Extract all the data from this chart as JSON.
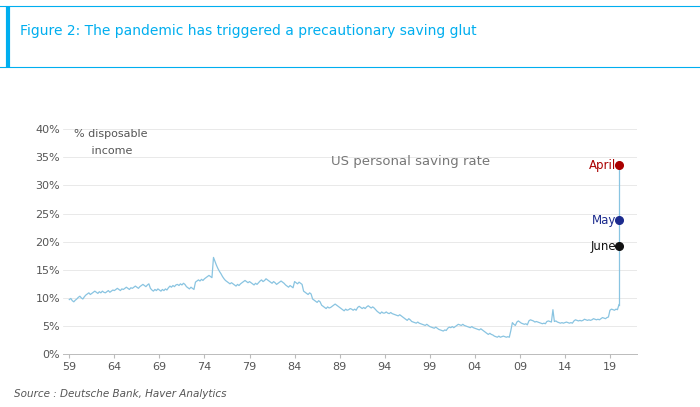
{
  "title": "Figure 2: The pandemic has triggered a precautionary saving glut",
  "subtitle": "US personal saving rate",
  "ylabel_line1": "% disposable",
  "ylabel_line2": "     income",
  "source": "Source : Deutsche Bank, Haver Analytics",
  "title_color": "#00AEEF",
  "line_color": "#89C4E1",
  "border_color": "#00AEEF",
  "background_color": "#FFFFFF",
  "text_color": "#555555",
  "ylim": [
    0,
    0.42
  ],
  "yticks": [
    0.0,
    0.05,
    0.1,
    0.15,
    0.2,
    0.25,
    0.3,
    0.35,
    0.4
  ],
  "ytick_labels": [
    "0%",
    "5%",
    "10%",
    "15%",
    "20%",
    "25%",
    "30%",
    "35%",
    "40%"
  ],
  "xticks": [
    1959,
    1964,
    1969,
    1974,
    1979,
    1984,
    1989,
    1994,
    1999,
    2004,
    2009,
    2014,
    2019
  ],
  "xtick_labels": [
    "59",
    "64",
    "69",
    "74",
    "79",
    "84",
    "89",
    "94",
    "99",
    "04",
    "09",
    "14",
    "19"
  ],
  "annotations": [
    {
      "label": "April",
      "value": 0.336,
      "color": "#AA0000",
      "marker_color": "#AA0000"
    },
    {
      "label": "May",
      "value": 0.238,
      "color": "#1C2B8E",
      "marker_color": "#1C2B8E"
    },
    {
      "label": "June",
      "value": 0.192,
      "color": "#111111",
      "marker_color": "#111111"
    }
  ],
  "xlim_left": 1958.3,
  "xlim_right": 2022.0,
  "spike_year": 2020.25,
  "pre_spike_year": 2020.0,
  "pre_spike_val": 0.088,
  "saving_rate_data": [
    [
      1959.0,
      0.097
    ],
    [
      1959.17,
      0.099
    ],
    [
      1959.33,
      0.095
    ],
    [
      1959.5,
      0.093
    ],
    [
      1959.67,
      0.096
    ],
    [
      1959.83,
      0.098
    ],
    [
      1960.0,
      0.101
    ],
    [
      1960.17,
      0.103
    ],
    [
      1960.33,
      0.1
    ],
    [
      1960.5,
      0.098
    ],
    [
      1960.67,
      0.102
    ],
    [
      1960.83,
      0.105
    ],
    [
      1961.0,
      0.107
    ],
    [
      1961.17,
      0.109
    ],
    [
      1961.33,
      0.106
    ],
    [
      1961.5,
      0.108
    ],
    [
      1961.67,
      0.11
    ],
    [
      1961.83,
      0.112
    ],
    [
      1962.0,
      0.11
    ],
    [
      1962.17,
      0.108
    ],
    [
      1962.33,
      0.111
    ],
    [
      1962.5,
      0.109
    ],
    [
      1962.67,
      0.112
    ],
    [
      1962.83,
      0.11
    ],
    [
      1963.0,
      0.109
    ],
    [
      1963.17,
      0.111
    ],
    [
      1963.33,
      0.113
    ],
    [
      1963.5,
      0.11
    ],
    [
      1963.67,
      0.112
    ],
    [
      1963.83,
      0.114
    ],
    [
      1964.0,
      0.113
    ],
    [
      1964.17,
      0.115
    ],
    [
      1964.33,
      0.117
    ],
    [
      1964.5,
      0.115
    ],
    [
      1964.67,
      0.113
    ],
    [
      1964.83,
      0.116
    ],
    [
      1965.0,
      0.115
    ],
    [
      1965.17,
      0.117
    ],
    [
      1965.33,
      0.119
    ],
    [
      1965.5,
      0.117
    ],
    [
      1965.67,
      0.115
    ],
    [
      1965.83,
      0.118
    ],
    [
      1966.0,
      0.117
    ],
    [
      1966.17,
      0.119
    ],
    [
      1966.33,
      0.121
    ],
    [
      1966.5,
      0.119
    ],
    [
      1966.67,
      0.117
    ],
    [
      1966.83,
      0.12
    ],
    [
      1967.0,
      0.122
    ],
    [
      1967.17,
      0.124
    ],
    [
      1967.33,
      0.122
    ],
    [
      1967.5,
      0.12
    ],
    [
      1967.67,
      0.123
    ],
    [
      1967.83,
      0.125
    ],
    [
      1968.0,
      0.117
    ],
    [
      1968.17,
      0.114
    ],
    [
      1968.33,
      0.112
    ],
    [
      1968.5,
      0.115
    ],
    [
      1968.67,
      0.113
    ],
    [
      1968.83,
      0.116
    ],
    [
      1969.0,
      0.114
    ],
    [
      1969.17,
      0.112
    ],
    [
      1969.33,
      0.115
    ],
    [
      1969.5,
      0.113
    ],
    [
      1969.67,
      0.116
    ],
    [
      1969.83,
      0.114
    ],
    [
      1970.0,
      0.118
    ],
    [
      1970.17,
      0.121
    ],
    [
      1970.33,
      0.119
    ],
    [
      1970.5,
      0.122
    ],
    [
      1970.67,
      0.12
    ],
    [
      1970.83,
      0.123
    ],
    [
      1971.0,
      0.124
    ],
    [
      1971.17,
      0.122
    ],
    [
      1971.33,
      0.125
    ],
    [
      1971.5,
      0.123
    ],
    [
      1971.67,
      0.126
    ],
    [
      1971.83,
      0.124
    ],
    [
      1972.0,
      0.12
    ],
    [
      1972.17,
      0.118
    ],
    [
      1972.33,
      0.116
    ],
    [
      1972.5,
      0.119
    ],
    [
      1972.67,
      0.117
    ],
    [
      1972.83,
      0.115
    ],
    [
      1973.0,
      0.128
    ],
    [
      1973.17,
      0.13
    ],
    [
      1973.33,
      0.132
    ],
    [
      1973.5,
      0.13
    ],
    [
      1973.67,
      0.133
    ],
    [
      1973.83,
      0.131
    ],
    [
      1974.0,
      0.134
    ],
    [
      1974.17,
      0.136
    ],
    [
      1974.33,
      0.138
    ],
    [
      1974.5,
      0.14
    ],
    [
      1974.67,
      0.138
    ],
    [
      1974.83,
      0.136
    ],
    [
      1975.0,
      0.172
    ],
    [
      1975.17,
      0.165
    ],
    [
      1975.33,
      0.158
    ],
    [
      1975.5,
      0.152
    ],
    [
      1975.67,
      0.147
    ],
    [
      1975.83,
      0.143
    ],
    [
      1976.0,
      0.138
    ],
    [
      1976.17,
      0.134
    ],
    [
      1976.33,
      0.131
    ],
    [
      1976.5,
      0.129
    ],
    [
      1976.67,
      0.127
    ],
    [
      1976.83,
      0.125
    ],
    [
      1977.0,
      0.127
    ],
    [
      1977.17,
      0.125
    ],
    [
      1977.33,
      0.123
    ],
    [
      1977.5,
      0.121
    ],
    [
      1977.67,
      0.124
    ],
    [
      1977.83,
      0.122
    ],
    [
      1978.0,
      0.125
    ],
    [
      1978.17,
      0.127
    ],
    [
      1978.33,
      0.129
    ],
    [
      1978.5,
      0.131
    ],
    [
      1978.67,
      0.129
    ],
    [
      1978.83,
      0.127
    ],
    [
      1979.0,
      0.129
    ],
    [
      1979.17,
      0.127
    ],
    [
      1979.33,
      0.125
    ],
    [
      1979.5,
      0.123
    ],
    [
      1979.67,
      0.126
    ],
    [
      1979.83,
      0.124
    ],
    [
      1980.0,
      0.127
    ],
    [
      1980.17,
      0.13
    ],
    [
      1980.33,
      0.132
    ],
    [
      1980.5,
      0.129
    ],
    [
      1980.67,
      0.131
    ],
    [
      1980.83,
      0.134
    ],
    [
      1981.0,
      0.132
    ],
    [
      1981.17,
      0.13
    ],
    [
      1981.33,
      0.128
    ],
    [
      1981.5,
      0.126
    ],
    [
      1981.67,
      0.129
    ],
    [
      1981.83,
      0.127
    ],
    [
      1982.0,
      0.124
    ],
    [
      1982.17,
      0.126
    ],
    [
      1982.33,
      0.128
    ],
    [
      1982.5,
      0.13
    ],
    [
      1982.67,
      0.128
    ],
    [
      1982.83,
      0.126
    ],
    [
      1983.0,
      0.123
    ],
    [
      1983.17,
      0.121
    ],
    [
      1983.33,
      0.119
    ],
    [
      1983.5,
      0.122
    ],
    [
      1983.67,
      0.12
    ],
    [
      1983.83,
      0.118
    ],
    [
      1984.0,
      0.129
    ],
    [
      1984.17,
      0.127
    ],
    [
      1984.33,
      0.125
    ],
    [
      1984.5,
      0.128
    ],
    [
      1984.67,
      0.126
    ],
    [
      1984.83,
      0.124
    ],
    [
      1985.0,
      0.112
    ],
    [
      1985.17,
      0.11
    ],
    [
      1985.33,
      0.108
    ],
    [
      1985.5,
      0.106
    ],
    [
      1985.67,
      0.109
    ],
    [
      1985.83,
      0.107
    ],
    [
      1986.0,
      0.098
    ],
    [
      1986.17,
      0.096
    ],
    [
      1986.33,
      0.094
    ],
    [
      1986.5,
      0.092
    ],
    [
      1986.67,
      0.095
    ],
    [
      1986.83,
      0.093
    ],
    [
      1987.0,
      0.087
    ],
    [
      1987.17,
      0.085
    ],
    [
      1987.33,
      0.083
    ],
    [
      1987.5,
      0.081
    ],
    [
      1987.67,
      0.084
    ],
    [
      1987.83,
      0.082
    ],
    [
      1988.0,
      0.083
    ],
    [
      1988.17,
      0.085
    ],
    [
      1988.33,
      0.087
    ],
    [
      1988.5,
      0.089
    ],
    [
      1988.67,
      0.087
    ],
    [
      1988.83,
      0.085
    ],
    [
      1989.0,
      0.083
    ],
    [
      1989.17,
      0.081
    ],
    [
      1989.33,
      0.079
    ],
    [
      1989.5,
      0.077
    ],
    [
      1989.67,
      0.08
    ],
    [
      1989.83,
      0.078
    ],
    [
      1990.0,
      0.079
    ],
    [
      1990.17,
      0.081
    ],
    [
      1990.33,
      0.08
    ],
    [
      1990.5,
      0.078
    ],
    [
      1990.67,
      0.08
    ],
    [
      1990.83,
      0.078
    ],
    [
      1991.0,
      0.083
    ],
    [
      1991.17,
      0.085
    ],
    [
      1991.33,
      0.083
    ],
    [
      1991.5,
      0.081
    ],
    [
      1991.67,
      0.083
    ],
    [
      1991.83,
      0.081
    ],
    [
      1992.0,
      0.084
    ],
    [
      1992.17,
      0.086
    ],
    [
      1992.33,
      0.084
    ],
    [
      1992.5,
      0.082
    ],
    [
      1992.67,
      0.084
    ],
    [
      1992.83,
      0.082
    ],
    [
      1993.0,
      0.079
    ],
    [
      1993.17,
      0.076
    ],
    [
      1993.33,
      0.074
    ],
    [
      1993.5,
      0.072
    ],
    [
      1993.67,
      0.075
    ],
    [
      1993.83,
      0.073
    ],
    [
      1994.0,
      0.073
    ],
    [
      1994.17,
      0.075
    ],
    [
      1994.33,
      0.073
    ],
    [
      1994.5,
      0.072
    ],
    [
      1994.67,
      0.074
    ],
    [
      1994.83,
      0.072
    ],
    [
      1995.0,
      0.071
    ],
    [
      1995.17,
      0.07
    ],
    [
      1995.33,
      0.069
    ],
    [
      1995.5,
      0.068
    ],
    [
      1995.67,
      0.07
    ],
    [
      1995.83,
      0.068
    ],
    [
      1996.0,
      0.066
    ],
    [
      1996.17,
      0.064
    ],
    [
      1996.33,
      0.062
    ],
    [
      1996.5,
      0.06
    ],
    [
      1996.67,
      0.063
    ],
    [
      1996.83,
      0.061
    ],
    [
      1997.0,
      0.058
    ],
    [
      1997.17,
      0.057
    ],
    [
      1997.33,
      0.056
    ],
    [
      1997.5,
      0.055
    ],
    [
      1997.67,
      0.057
    ],
    [
      1997.83,
      0.055
    ],
    [
      1998.0,
      0.054
    ],
    [
      1998.17,
      0.053
    ],
    [
      1998.33,
      0.052
    ],
    [
      1998.5,
      0.051
    ],
    [
      1998.67,
      0.053
    ],
    [
      1998.83,
      0.051
    ],
    [
      1999.0,
      0.049
    ],
    [
      1999.17,
      0.048
    ],
    [
      1999.33,
      0.047
    ],
    [
      1999.5,
      0.046
    ],
    [
      1999.67,
      0.048
    ],
    [
      1999.83,
      0.046
    ],
    [
      2000.0,
      0.044
    ],
    [
      2000.17,
      0.043
    ],
    [
      2000.33,
      0.042
    ],
    [
      2000.5,
      0.041
    ],
    [
      2000.67,
      0.043
    ],
    [
      2000.83,
      0.042
    ],
    [
      2001.0,
      0.046
    ],
    [
      2001.17,
      0.048
    ],
    [
      2001.33,
      0.047
    ],
    [
      2001.5,
      0.049
    ],
    [
      2001.67,
      0.047
    ],
    [
      2001.83,
      0.049
    ],
    [
      2002.0,
      0.051
    ],
    [
      2002.17,
      0.053
    ],
    [
      2002.33,
      0.052
    ],
    [
      2002.5,
      0.051
    ],
    [
      2002.67,
      0.053
    ],
    [
      2002.83,
      0.051
    ],
    [
      2003.0,
      0.05
    ],
    [
      2003.17,
      0.049
    ],
    [
      2003.33,
      0.048
    ],
    [
      2003.5,
      0.047
    ],
    [
      2003.67,
      0.049
    ],
    [
      2003.83,
      0.047
    ],
    [
      2004.0,
      0.046
    ],
    [
      2004.17,
      0.045
    ],
    [
      2004.33,
      0.044
    ],
    [
      2004.5,
      0.043
    ],
    [
      2004.67,
      0.045
    ],
    [
      2004.83,
      0.043
    ],
    [
      2005.0,
      0.041
    ],
    [
      2005.17,
      0.039
    ],
    [
      2005.33,
      0.037
    ],
    [
      2005.5,
      0.035
    ],
    [
      2005.67,
      0.037
    ],
    [
      2005.83,
      0.035
    ],
    [
      2006.0,
      0.034
    ],
    [
      2006.17,
      0.032
    ],
    [
      2006.33,
      0.031
    ],
    [
      2006.5,
      0.03
    ],
    [
      2006.67,
      0.032
    ],
    [
      2006.83,
      0.03
    ],
    [
      2007.0,
      0.031
    ],
    [
      2007.17,
      0.032
    ],
    [
      2007.33,
      0.031
    ],
    [
      2007.5,
      0.03
    ],
    [
      2007.67,
      0.031
    ],
    [
      2007.83,
      0.03
    ],
    [
      2008.0,
      0.042
    ],
    [
      2008.17,
      0.056
    ],
    [
      2008.33,
      0.053
    ],
    [
      2008.5,
      0.051
    ],
    [
      2008.67,
      0.057
    ],
    [
      2008.83,
      0.059
    ],
    [
      2009.0,
      0.057
    ],
    [
      2009.17,
      0.055
    ],
    [
      2009.33,
      0.054
    ],
    [
      2009.5,
      0.053
    ],
    [
      2009.67,
      0.054
    ],
    [
      2009.83,
      0.052
    ],
    [
      2010.0,
      0.059
    ],
    [
      2010.17,
      0.061
    ],
    [
      2010.33,
      0.06
    ],
    [
      2010.5,
      0.059
    ],
    [
      2010.67,
      0.057
    ],
    [
      2010.83,
      0.058
    ],
    [
      2011.0,
      0.057
    ],
    [
      2011.17,
      0.056
    ],
    [
      2011.33,
      0.055
    ],
    [
      2011.5,
      0.054
    ],
    [
      2011.67,
      0.055
    ],
    [
      2011.83,
      0.054
    ],
    [
      2012.0,
      0.058
    ],
    [
      2012.17,
      0.059
    ],
    [
      2012.33,
      0.058
    ],
    [
      2012.5,
      0.057
    ],
    [
      2012.67,
      0.079
    ],
    [
      2012.83,
      0.058
    ],
    [
      2013.0,
      0.059
    ],
    [
      2013.17,
      0.057
    ],
    [
      2013.33,
      0.056
    ],
    [
      2013.5,
      0.055
    ],
    [
      2013.67,
      0.056
    ],
    [
      2013.83,
      0.055
    ],
    [
      2014.0,
      0.056
    ],
    [
      2014.17,
      0.057
    ],
    [
      2014.33,
      0.056
    ],
    [
      2014.5,
      0.055
    ],
    [
      2014.67,
      0.056
    ],
    [
      2014.83,
      0.055
    ],
    [
      2015.0,
      0.059
    ],
    [
      2015.17,
      0.061
    ],
    [
      2015.33,
      0.06
    ],
    [
      2015.5,
      0.059
    ],
    [
      2015.67,
      0.06
    ],
    [
      2015.83,
      0.059
    ],
    [
      2016.0,
      0.06
    ],
    [
      2016.17,
      0.062
    ],
    [
      2016.33,
      0.061
    ],
    [
      2016.5,
      0.06
    ],
    [
      2016.67,
      0.061
    ],
    [
      2016.83,
      0.06
    ],
    [
      2017.0,
      0.061
    ],
    [
      2017.17,
      0.063
    ],
    [
      2017.33,
      0.062
    ],
    [
      2017.5,
      0.061
    ],
    [
      2017.67,
      0.062
    ],
    [
      2017.83,
      0.061
    ],
    [
      2018.0,
      0.063
    ],
    [
      2018.17,
      0.065
    ],
    [
      2018.33,
      0.064
    ],
    [
      2018.5,
      0.063
    ],
    [
      2018.67,
      0.065
    ],
    [
      2018.83,
      0.066
    ],
    [
      2019.0,
      0.078
    ],
    [
      2019.17,
      0.08
    ],
    [
      2019.33,
      0.079
    ],
    [
      2019.5,
      0.078
    ],
    [
      2019.67,
      0.08
    ],
    [
      2019.83,
      0.079
    ],
    [
      2020.0,
      0.088
    ]
  ]
}
